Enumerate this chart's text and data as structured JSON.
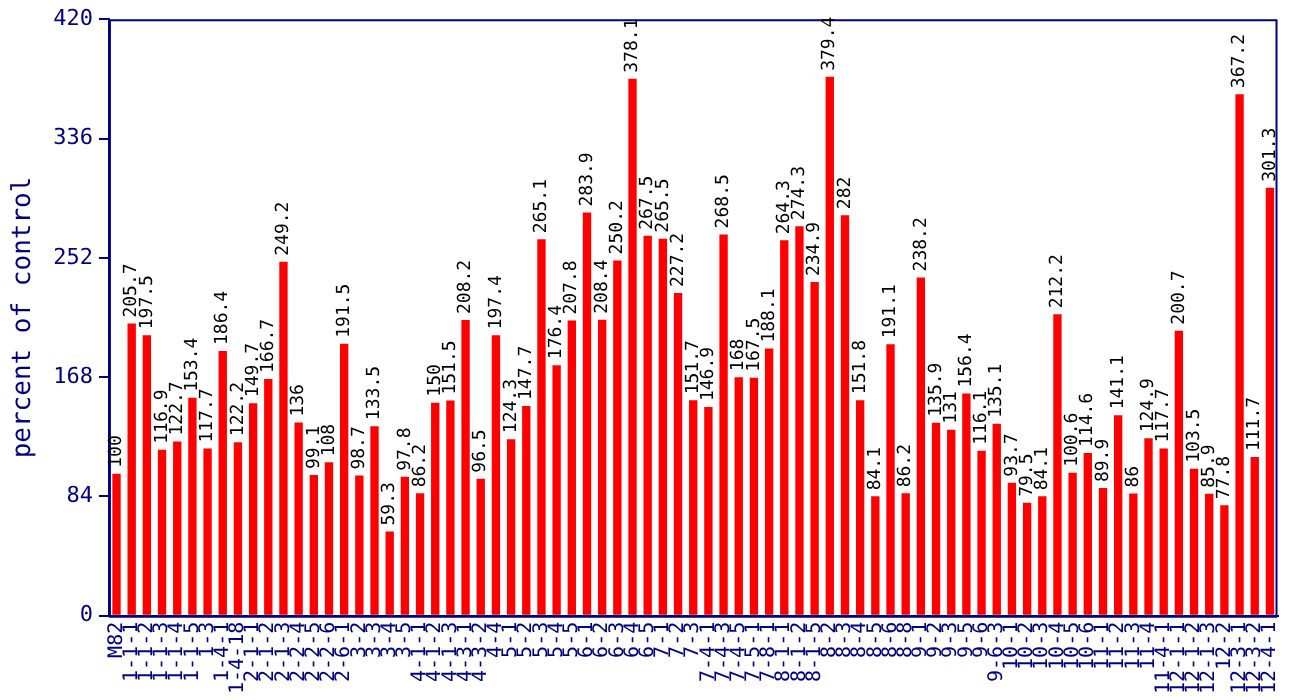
{
  "chart_data": {
    "type": "bar",
    "ylabel": "percent of control",
    "color": "#ff0000",
    "categories": [
      "M82",
      "1-1-1",
      "1-1-2",
      "1-1-3",
      "1-1-4",
      "1-1-5",
      "1-3",
      "1-4-1",
      "1-4-18",
      "2-1-1",
      "2-1-2",
      "2-1-3",
      "2-2-4",
      "2-2-5",
      "2-2-6",
      "2-6-1",
      "3-2",
      "3-3",
      "3-4",
      "3-5",
      "4-1-1",
      "4-1-2",
      "4-1-3",
      "4-3-1",
      "4-3-2",
      "4-4",
      "5-1",
      "5-2",
      "5-3",
      "5-4",
      "5-5",
      "6-1",
      "6-2",
      "6-3",
      "6-4",
      "6-5",
      "7-1",
      "7-2",
      "7-3",
      "7-4-1",
      "7-4-3",
      "7-4-5",
      "7-5-1",
      "7-8-1",
      "8-1-1",
      "8-1-2",
      "8-1-5",
      "8-2",
      "8-3",
      "8-4",
      "8-5",
      "8-6",
      "8-8",
      "9-1",
      "9-2",
      "9-3",
      "9-5",
      "9-6",
      "9-6-3",
      "10-1",
      "10-2",
      "10-3",
      "10-4",
      "10-5",
      "10-6",
      "11-1",
      "11-2",
      "11-3",
      "11-4",
      "11-4-1",
      "12-1-1",
      "12-1-2",
      "12-1-3",
      "12-2",
      "12-3-1",
      "12-3-2",
      "12-4-1"
    ],
    "values": [
      100,
      205.7,
      197.5,
      116.9,
      122.7,
      153.4,
      117.7,
      186.4,
      122.2,
      149.7,
      166.7,
      249.2,
      136,
      99.1,
      108,
      191.5,
      98.7,
      133.5,
      59.3,
      97.8,
      86.2,
      150,
      151.5,
      208.2,
      96.5,
      197.4,
      124.3,
      147.7,
      265.1,
      176.4,
      207.8,
      283.9,
      208.4,
      250.2,
      378.1,
      267.5,
      265.5,
      227.2,
      151.7,
      146.9,
      268.5,
      168,
      167.5,
      188.1,
      264.3,
      274.3,
      234.9,
      379.4,
      282,
      151.8,
      84.1,
      191.1,
      86.2,
      238.2,
      135.9,
      131,
      156.4,
      116.1,
      135.1,
      93.7,
      79.5,
      84.1,
      212.2,
      100.6,
      114.6,
      89.9,
      141.1,
      86,
      124.9,
      117.7,
      200.7,
      103.5,
      85.9,
      77.8,
      367.2,
      111.7,
      301.3
    ],
    "ylim": [
      0,
      420
    ],
    "yticks": [
      0,
      84,
      168,
      252,
      336,
      420
    ],
    "grid": false,
    "legend": false,
    "data_labels": true
  }
}
